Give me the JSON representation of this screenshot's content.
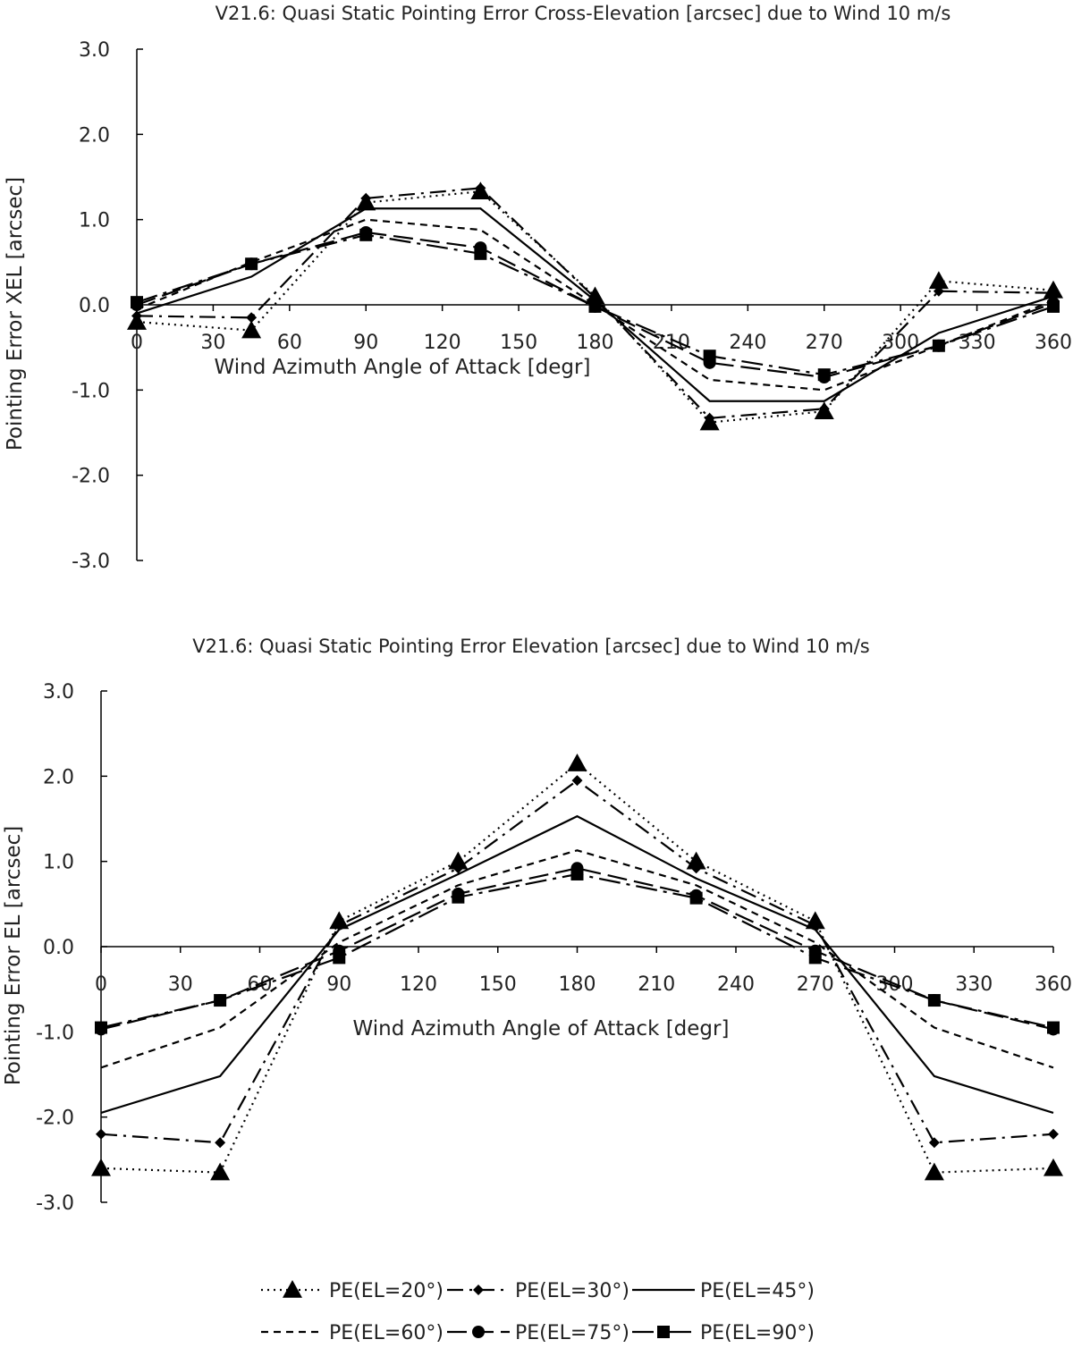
{
  "chart_data": [
    {
      "type": "line",
      "title": "V21.6:   Quasi Static Pointing Error Cross-Elevation [arcsec] due to Wind 10 m/s",
      "xlabel": "Wind Azimuth Angle of Attack [degr]",
      "ylabel": "Pointing Error XEL [arcsec]",
      "xlim": [
        0,
        360
      ],
      "ylim": [
        -3.0,
        3.0
      ],
      "xticks": [
        "0",
        "30",
        "60",
        "90",
        "120",
        "150",
        "180",
        "210",
        "240",
        "270",
        "300",
        "330",
        "360"
      ],
      "yticks": [
        "3.0",
        "2.0",
        "1.0",
        "0.0",
        "-1.0",
        "-2.0",
        "-3.0"
      ],
      "x": [
        0,
        45,
        90,
        135,
        180,
        225,
        270,
        315,
        360
      ],
      "series": [
        {
          "name": "PE(EL=20°)",
          "values": [
            -0.2,
            -0.3,
            1.2,
            1.33,
            0.1,
            -1.38,
            -1.25,
            0.28,
            0.17
          ]
        },
        {
          "name": "PE(EL=30°)",
          "values": [
            -0.13,
            -0.15,
            1.25,
            1.37,
            0.08,
            -1.33,
            -1.22,
            0.16,
            0.14
          ]
        },
        {
          "name": "PE(EL=45°)",
          "values": [
            -0.1,
            0.33,
            1.13,
            1.13,
            0.05,
            -1.13,
            -1.13,
            -0.33,
            0.1
          ]
        },
        {
          "name": "PE(EL=60°)",
          "values": [
            -0.05,
            0.5,
            1.0,
            0.88,
            0.0,
            -0.88,
            -1.0,
            -0.48,
            0.05
          ]
        },
        {
          "name": "PE(EL=75°)",
          "values": [
            0.0,
            0.48,
            0.85,
            0.67,
            -0.02,
            -0.68,
            -0.85,
            -0.48,
            0.02
          ]
        },
        {
          "name": "PE(EL=90°)",
          "values": [
            0.03,
            0.48,
            0.82,
            0.6,
            -0.02,
            -0.6,
            -0.82,
            -0.48,
            -0.02
          ]
        }
      ]
    },
    {
      "type": "line",
      "title": "V21.6:   Quasi Static Pointing Error Elevation [arcsec] due to Wind 10 m/s",
      "xlabel": "Wind Azimuth Angle of Attack [degr]",
      "ylabel": "Pointing Error EL [arcsec]",
      "xlim": [
        0,
        360
      ],
      "ylim": [
        -3.0,
        3.0
      ],
      "xticks": [
        "0",
        "30",
        "60",
        "90",
        "120",
        "150",
        "180",
        "210",
        "240",
        "270",
        "300",
        "330",
        "360"
      ],
      "yticks": [
        "3.0",
        "2.0",
        "1.0",
        "0.0",
        "-1.0",
        "-2.0",
        "-3.0"
      ],
      "x": [
        0,
        45,
        90,
        135,
        180,
        225,
        270,
        315,
        360
      ],
      "series": [
        {
          "name": "PE(EL=20°)",
          "values": [
            -2.6,
            -2.65,
            0.3,
            1.0,
            2.15,
            1.0,
            0.3,
            -2.65,
            -2.6
          ]
        },
        {
          "name": "PE(EL=30°)",
          "values": [
            -2.2,
            -2.3,
            0.25,
            0.92,
            1.95,
            0.92,
            0.25,
            -2.3,
            -2.2
          ]
        },
        {
          "name": "PE(EL=45°)",
          "values": [
            -1.95,
            -1.52,
            0.2,
            0.85,
            1.53,
            0.8,
            0.2,
            -1.52,
            -1.95
          ]
        },
        {
          "name": "PE(EL=60°)",
          "values": [
            -1.42,
            -0.95,
            0.05,
            0.72,
            1.13,
            0.72,
            0.05,
            -0.95,
            -1.42
          ]
        },
        {
          "name": "PE(EL=75°)",
          "values": [
            -0.97,
            -0.63,
            -0.05,
            0.62,
            0.92,
            0.6,
            -0.05,
            -0.63,
            -0.97
          ]
        },
        {
          "name": "PE(EL=90°)",
          "values": [
            -0.95,
            -0.63,
            -0.13,
            0.58,
            0.85,
            0.57,
            -0.13,
            -0.63,
            -0.95
          ]
        }
      ]
    }
  ],
  "legend": {
    "items": [
      {
        "label": "PE(EL=20°)",
        "marker": "triangle",
        "dash": "dotted"
      },
      {
        "label": "PE(EL=30°)",
        "marker": "diamond",
        "dash": "dash-dot"
      },
      {
        "label": "PE(EL=45°)",
        "marker": "none",
        "dash": "solid"
      },
      {
        "label": "PE(EL=60°)",
        "marker": "none",
        "dash": "short-dash"
      },
      {
        "label": "PE(EL=75°)",
        "marker": "circle",
        "dash": "long-dash"
      },
      {
        "label": "PE(EL=90°)",
        "marker": "square",
        "dash": "long-dash-dot"
      }
    ]
  }
}
